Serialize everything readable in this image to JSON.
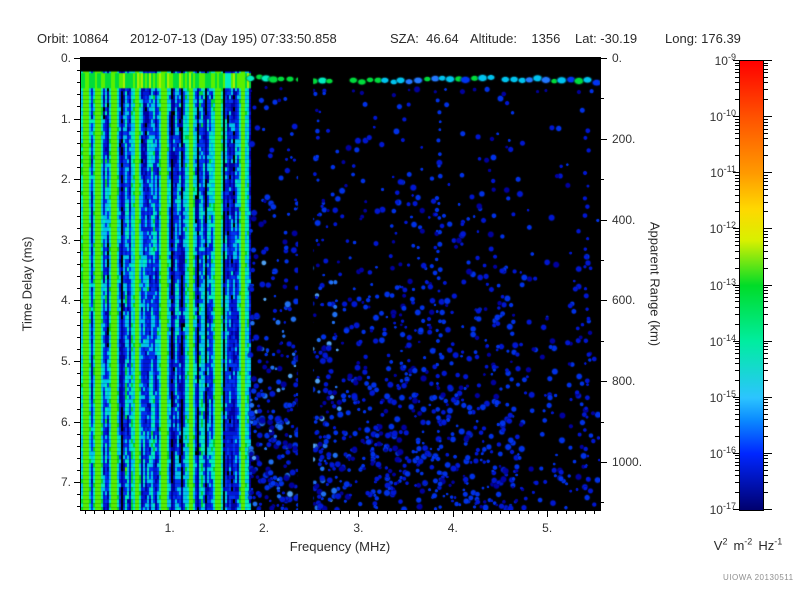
{
  "header": {
    "orbit": "Orbit: 10864",
    "datetime": "2012-07-13 (Day 195) 07:33:50.858",
    "sza": "SZA:  46.64",
    "altitude": "Altitude:    1356",
    "lat": "Lat: -30.19",
    "long": "Long: 176.39"
  },
  "chart_data": {
    "type": "heatmap",
    "title": "",
    "xlabel": "Frequency (MHz)",
    "ylabel_left": "Time Delay (ms)",
    "ylabel_right": "Apparent Range (km)",
    "x_range_mhz": [
      0.06,
      5.56
    ],
    "x_major_ticks": [
      1,
      2,
      3,
      4,
      5
    ],
    "x_tick_labels": [
      "1.",
      "2.",
      "3.",
      "4.",
      "5."
    ],
    "x_minor_step_mhz": 0.1,
    "y_range_ms": [
      0,
      7.46
    ],
    "y_major_ticks_ms": [
      0,
      1,
      2,
      3,
      4,
      5,
      6,
      7
    ],
    "y_tick_labels": [
      "0.",
      "1.",
      "2.",
      "3.",
      "4.",
      "5.",
      "6.",
      "7."
    ],
    "y_minor_step_ms": 0.2,
    "range_axis": {
      "km_per_ms": 150,
      "major_ticks_km": [
        0,
        200,
        400,
        600,
        800,
        1000
      ],
      "tick_labels": [
        "0.",
        "200.",
        "400.",
        "600.",
        "800.",
        "1000."
      ],
      "minor_step_km": 100
    },
    "colorbar": {
      "scale": "log",
      "max_value": "1e-9",
      "min_value": "1e-17",
      "exponent_ticks": [
        -9,
        -10,
        -11,
        -12,
        -13,
        -14,
        -15,
        -16,
        -17
      ],
      "unit_parts": [
        {
          "base": "V",
          "exp": "2"
        },
        {
          "base": "m",
          "exp": "-2"
        },
        {
          "base": "Hz",
          "exp": "-1"
        }
      ],
      "gradient_stops": [
        {
          "pos": 0.0,
          "color": "#ff0000"
        },
        {
          "pos": 0.125,
          "color": "#ff5200"
        },
        {
          "pos": 0.25,
          "color": "#ff9a00"
        },
        {
          "pos": 0.33,
          "color": "#ffd800"
        },
        {
          "pos": 0.4,
          "color": "#d8f000"
        },
        {
          "pos": 0.5,
          "color": "#00dc28"
        },
        {
          "pos": 0.625,
          "color": "#00eda0"
        },
        {
          "pos": 0.75,
          "color": "#2cc4ff"
        },
        {
          "pos": 0.8,
          "color": "#0b8aff"
        },
        {
          "pos": 0.875,
          "color": "#0026ff"
        },
        {
          "pos": 1.0,
          "color": "#00006e"
        }
      ]
    },
    "features": {
      "background": "#000000",
      "top_black_band_ms": [
        0,
        0.22
      ],
      "echo_band_ms": [
        0.25,
        0.5
      ],
      "echo_center_ms": 0.36,
      "striped_region_mhz": [
        0.06,
        1.85
      ],
      "green_stripes_mhz": [
        0.1,
        0.23,
        0.4,
        0.64,
        0.93,
        1.21,
        1.5,
        1.77
      ],
      "dark_gap_mhz": [
        2.36,
        2.52
      ],
      "dotted_columns_mhz": [
        3.85,
        5.42
      ],
      "speckle_region_mhz": [
        1.85,
        5.56
      ],
      "seed": 20130511,
      "palette": {
        "black": "#000000",
        "dim_blue": "#0000a8",
        "blue": "#0018dc",
        "mid_blue": "#0034f4",
        "light_blue": "#2277ff",
        "pale_blue": "#55aaff",
        "cyan": "#00c4f0",
        "aqua": "#00eec0",
        "green": "#00dc3c",
        "bright_green": "#58f000",
        "yellow_green": "#a8f000"
      }
    }
  },
  "footer": {
    "credit": "UIOWA 20130511"
  }
}
